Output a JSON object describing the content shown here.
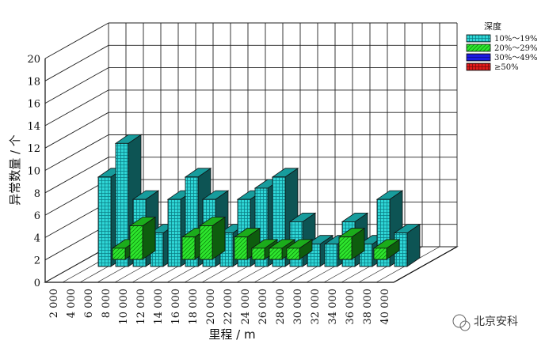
{
  "chart_data": {
    "type": "bar",
    "title": "",
    "xlabel": "里程 / m",
    "ylabel": "异常数量 / 个",
    "ylim": [
      0,
      20
    ],
    "yticks": [
      "0",
      "2",
      "4",
      "6",
      "8",
      "10",
      "12",
      "14",
      "16",
      "18",
      "20"
    ],
    "categories": [
      "2 000",
      "4 000",
      "6 000",
      "8 000",
      "10 000",
      "12 000",
      "14 000",
      "16 000",
      "18 000",
      "20 000",
      "22 000",
      "24 000",
      "26 000",
      "28 000",
      "30 000",
      "32 000",
      "34 000",
      "36 000",
      "38 000",
      "40 000"
    ],
    "legend_title": "深度",
    "legend_position": "top-right",
    "grid": true,
    "series": [
      {
        "name": "10%～19%",
        "color": "#1ec8c8",
        "values": [
          0,
          0,
          8,
          11,
          6,
          3,
          6,
          8,
          6,
          3,
          6,
          7,
          8,
          4,
          2,
          2,
          4,
          2,
          6,
          3
        ]
      },
      {
        "name": "20%～29%",
        "color": "#22dd22",
        "values": [
          0,
          0,
          1,
          3,
          0,
          0,
          2,
          3,
          0,
          2,
          1,
          1,
          1,
          0,
          0,
          2,
          0,
          1,
          0,
          0
        ]
      },
      {
        "name": "30%～49%",
        "color": "#1a1ae0",
        "values": [
          0,
          0,
          0,
          0,
          0,
          0,
          0,
          0,
          0,
          0,
          0,
          0,
          0,
          0,
          0,
          0,
          0,
          0,
          0,
          0
        ]
      },
      {
        "name": "≥50%",
        "color": "#e01a1a",
        "values": [
          0,
          0,
          0,
          0,
          0,
          0,
          0,
          0,
          0,
          0,
          0,
          0,
          0,
          0,
          0,
          0,
          0,
          0,
          0,
          0
        ]
      }
    ]
  },
  "watermark": {
    "text": "北京安科",
    "icon": "wechat-icon"
  }
}
